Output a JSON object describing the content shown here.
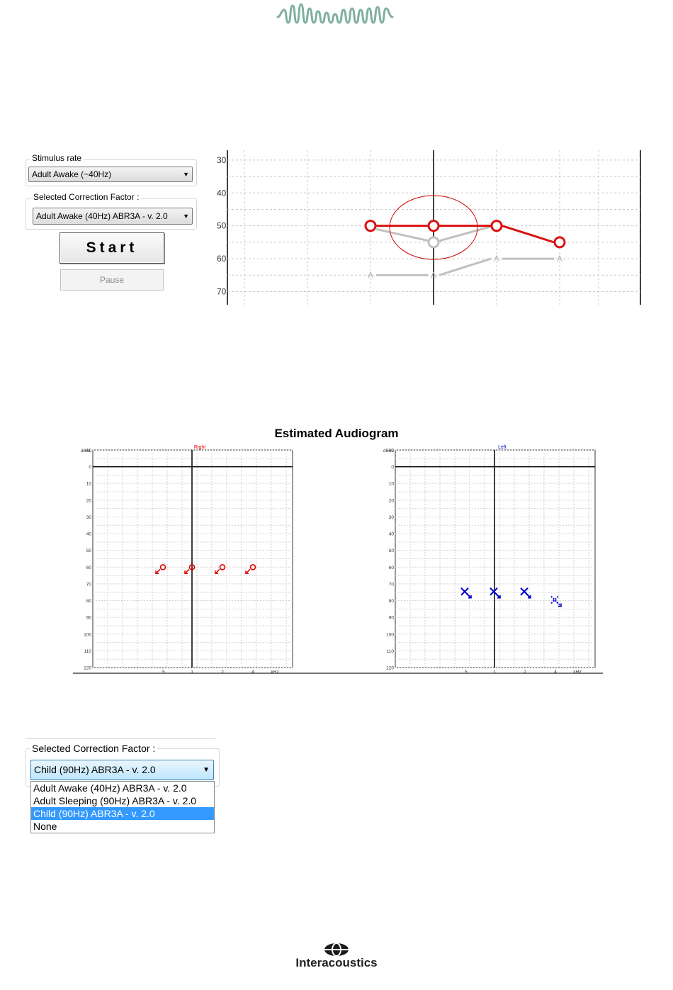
{
  "header": {
    "logo_icon": "waveform-logo-icon"
  },
  "settings_panel": {
    "stimulus_rate": {
      "label": "Stimulus rate",
      "value": "Adult Awake (~40Hz)"
    },
    "correction_factor": {
      "label": "Selected Correction Factor :",
      "value": "Adult Awake (40Hz) ABR3A - v. 2.0"
    },
    "start_label": "Start",
    "pause_label": "Pause"
  },
  "threshold_chart": {
    "y_ticks": [
      "30",
      "40",
      "50",
      "60",
      "70"
    ],
    "marker_letter": "A"
  },
  "audiogram": {
    "title": "Estimated Audiogram",
    "right": {
      "ear_label": "Right",
      "color": "#e00000"
    },
    "left": {
      "ear_label": "Left",
      "color": "#0000cc"
    },
    "y_unit": "dBHL",
    "y_ticks": [
      "-10",
      "0",
      "10",
      "20",
      "30",
      "40",
      "50",
      "60",
      "70",
      "80",
      "90",
      "100",
      "110",
      "120"
    ],
    "x_ticks": [
      ".5",
      "1",
      "2",
      "4"
    ],
    "x_unit": "kHz"
  },
  "correction_dropdown": {
    "label": "Selected Correction Factor :",
    "value": "Child (90Hz) ABR3A - v. 2.0",
    "options": [
      "Adult Awake (40Hz) ABR3A - v. 2.0",
      "Adult Sleeping (90Hz) ABR3A - v. 2.0",
      "Child (90Hz) ABR3A - v. 2.0",
      "None"
    ],
    "selected_index": 2
  },
  "footer": {
    "brand": "Interacoustics",
    "logo_icon": "interacoustics-logo-icon"
  },
  "chart_data": [
    {
      "type": "line",
      "x": [
        0.5,
        1,
        2,
        4
      ],
      "series": [
        {
          "values": [
            50,
            50,
            50,
            55
          ],
          "color": "#dd1111"
        },
        {
          "values": [
            null,
            55,
            50,
            null
          ],
          "color": "#bbbbbb"
        },
        {
          "values": [
            65,
            65,
            60,
            60
          ],
          "color": "#bbbbbb"
        }
      ],
      "ylim": [
        27,
        74
      ],
      "grid": true
    },
    {
      "type": "scatter",
      "title": "Estimated Audiogram",
      "series": [
        {
          "name": "Right",
          "x": [
            0.5,
            1,
            2,
            4
          ],
          "values": [
            60,
            60,
            60,
            60
          ],
          "color": "#e00000"
        },
        {
          "name": "Left",
          "x": [
            0.5,
            1,
            2,
            4
          ],
          "values": [
            75,
            75,
            75,
            80
          ],
          "color": "#0000cc"
        }
      ],
      "xlabel": "kHz",
      "ylabel": "dBHL",
      "ylim": [
        -10,
        120
      ],
      "grid": true
    }
  ]
}
